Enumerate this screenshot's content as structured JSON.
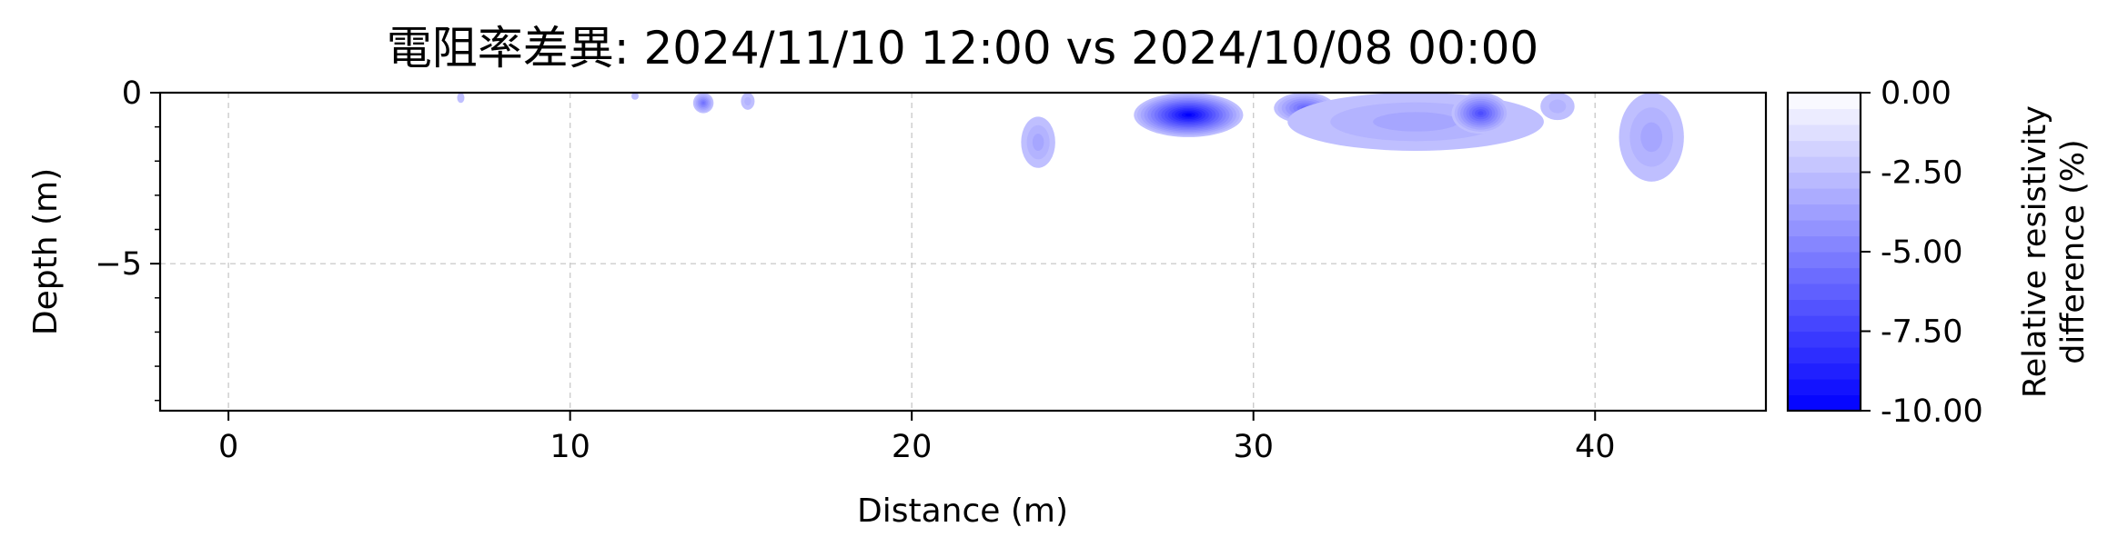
{
  "chart_data": {
    "type": "heatmap",
    "title": "電阻率差異: 2024/11/10 12:00 vs 2024/10/08 00:00",
    "xlabel": "Distance (m)",
    "ylabel": "Depth (m)",
    "xlim": [
      -2,
      45
    ],
    "ylim": [
      -9.3,
      0
    ],
    "xticks": [
      0,
      10,
      20,
      30,
      40
    ],
    "xtick_labels": [
      "0",
      "10",
      "20",
      "30",
      "40"
    ],
    "yticks": [
      0,
      -5
    ],
    "ytick_labels": [
      "0",
      "−5"
    ],
    "grid": true,
    "colorbar": {
      "label_line1": "Relative resistivity",
      "label_line2": "difference (%)",
      "range": [
        -10,
        0
      ],
      "levels": 20,
      "ticks": [
        0,
        -2.5,
        -5,
        -7.5,
        -10
      ],
      "tick_labels": [
        "0.00",
        "-2.50",
        "-5.00",
        "-7.50",
        "-10.00"
      ],
      "color_low": "#0000ff",
      "color_high": "#ffffff"
    },
    "anomalies": [
      {
        "x": [
          6.7,
          6.9
        ],
        "depth": [
          0,
          0.3
        ],
        "min_value": -2.5
      },
      {
        "x": [
          11.8,
          12.0
        ],
        "depth": [
          0,
          0.2
        ],
        "min_value": -2.5
      },
      {
        "x": [
          13.6,
          14.2
        ],
        "depth": [
          0,
          0.6
        ],
        "min_value": -5.5
      },
      {
        "x": [
          15.0,
          15.4
        ],
        "depth": [
          0,
          0.5
        ],
        "min_value": -3.0
      },
      {
        "x": [
          23.2,
          24.2
        ],
        "depth": [
          0.7,
          2.2
        ],
        "min_value": -3.5
      },
      {
        "x": [
          26.5,
          29.7
        ],
        "depth": [
          0,
          1.3
        ],
        "min_value": -10.0
      },
      {
        "x": [
          30.6,
          32.4
        ],
        "depth": [
          0,
          0.9
        ],
        "min_value": -6.0
      },
      {
        "x": [
          31.0,
          38.5
        ],
        "depth": [
          0,
          1.7
        ],
        "min_value": -3.5
      },
      {
        "x": [
          35.8,
          37.5
        ],
        "depth": [
          0,
          1.2
        ],
        "min_value": -7.0
      },
      {
        "x": [
          38.4,
          39.4
        ],
        "depth": [
          0,
          0.8
        ],
        "min_value": -3.0
      },
      {
        "x": [
          40.7,
          42.6
        ],
        "depth": [
          0,
          2.6
        ],
        "min_value": -3.5
      }
    ]
  }
}
